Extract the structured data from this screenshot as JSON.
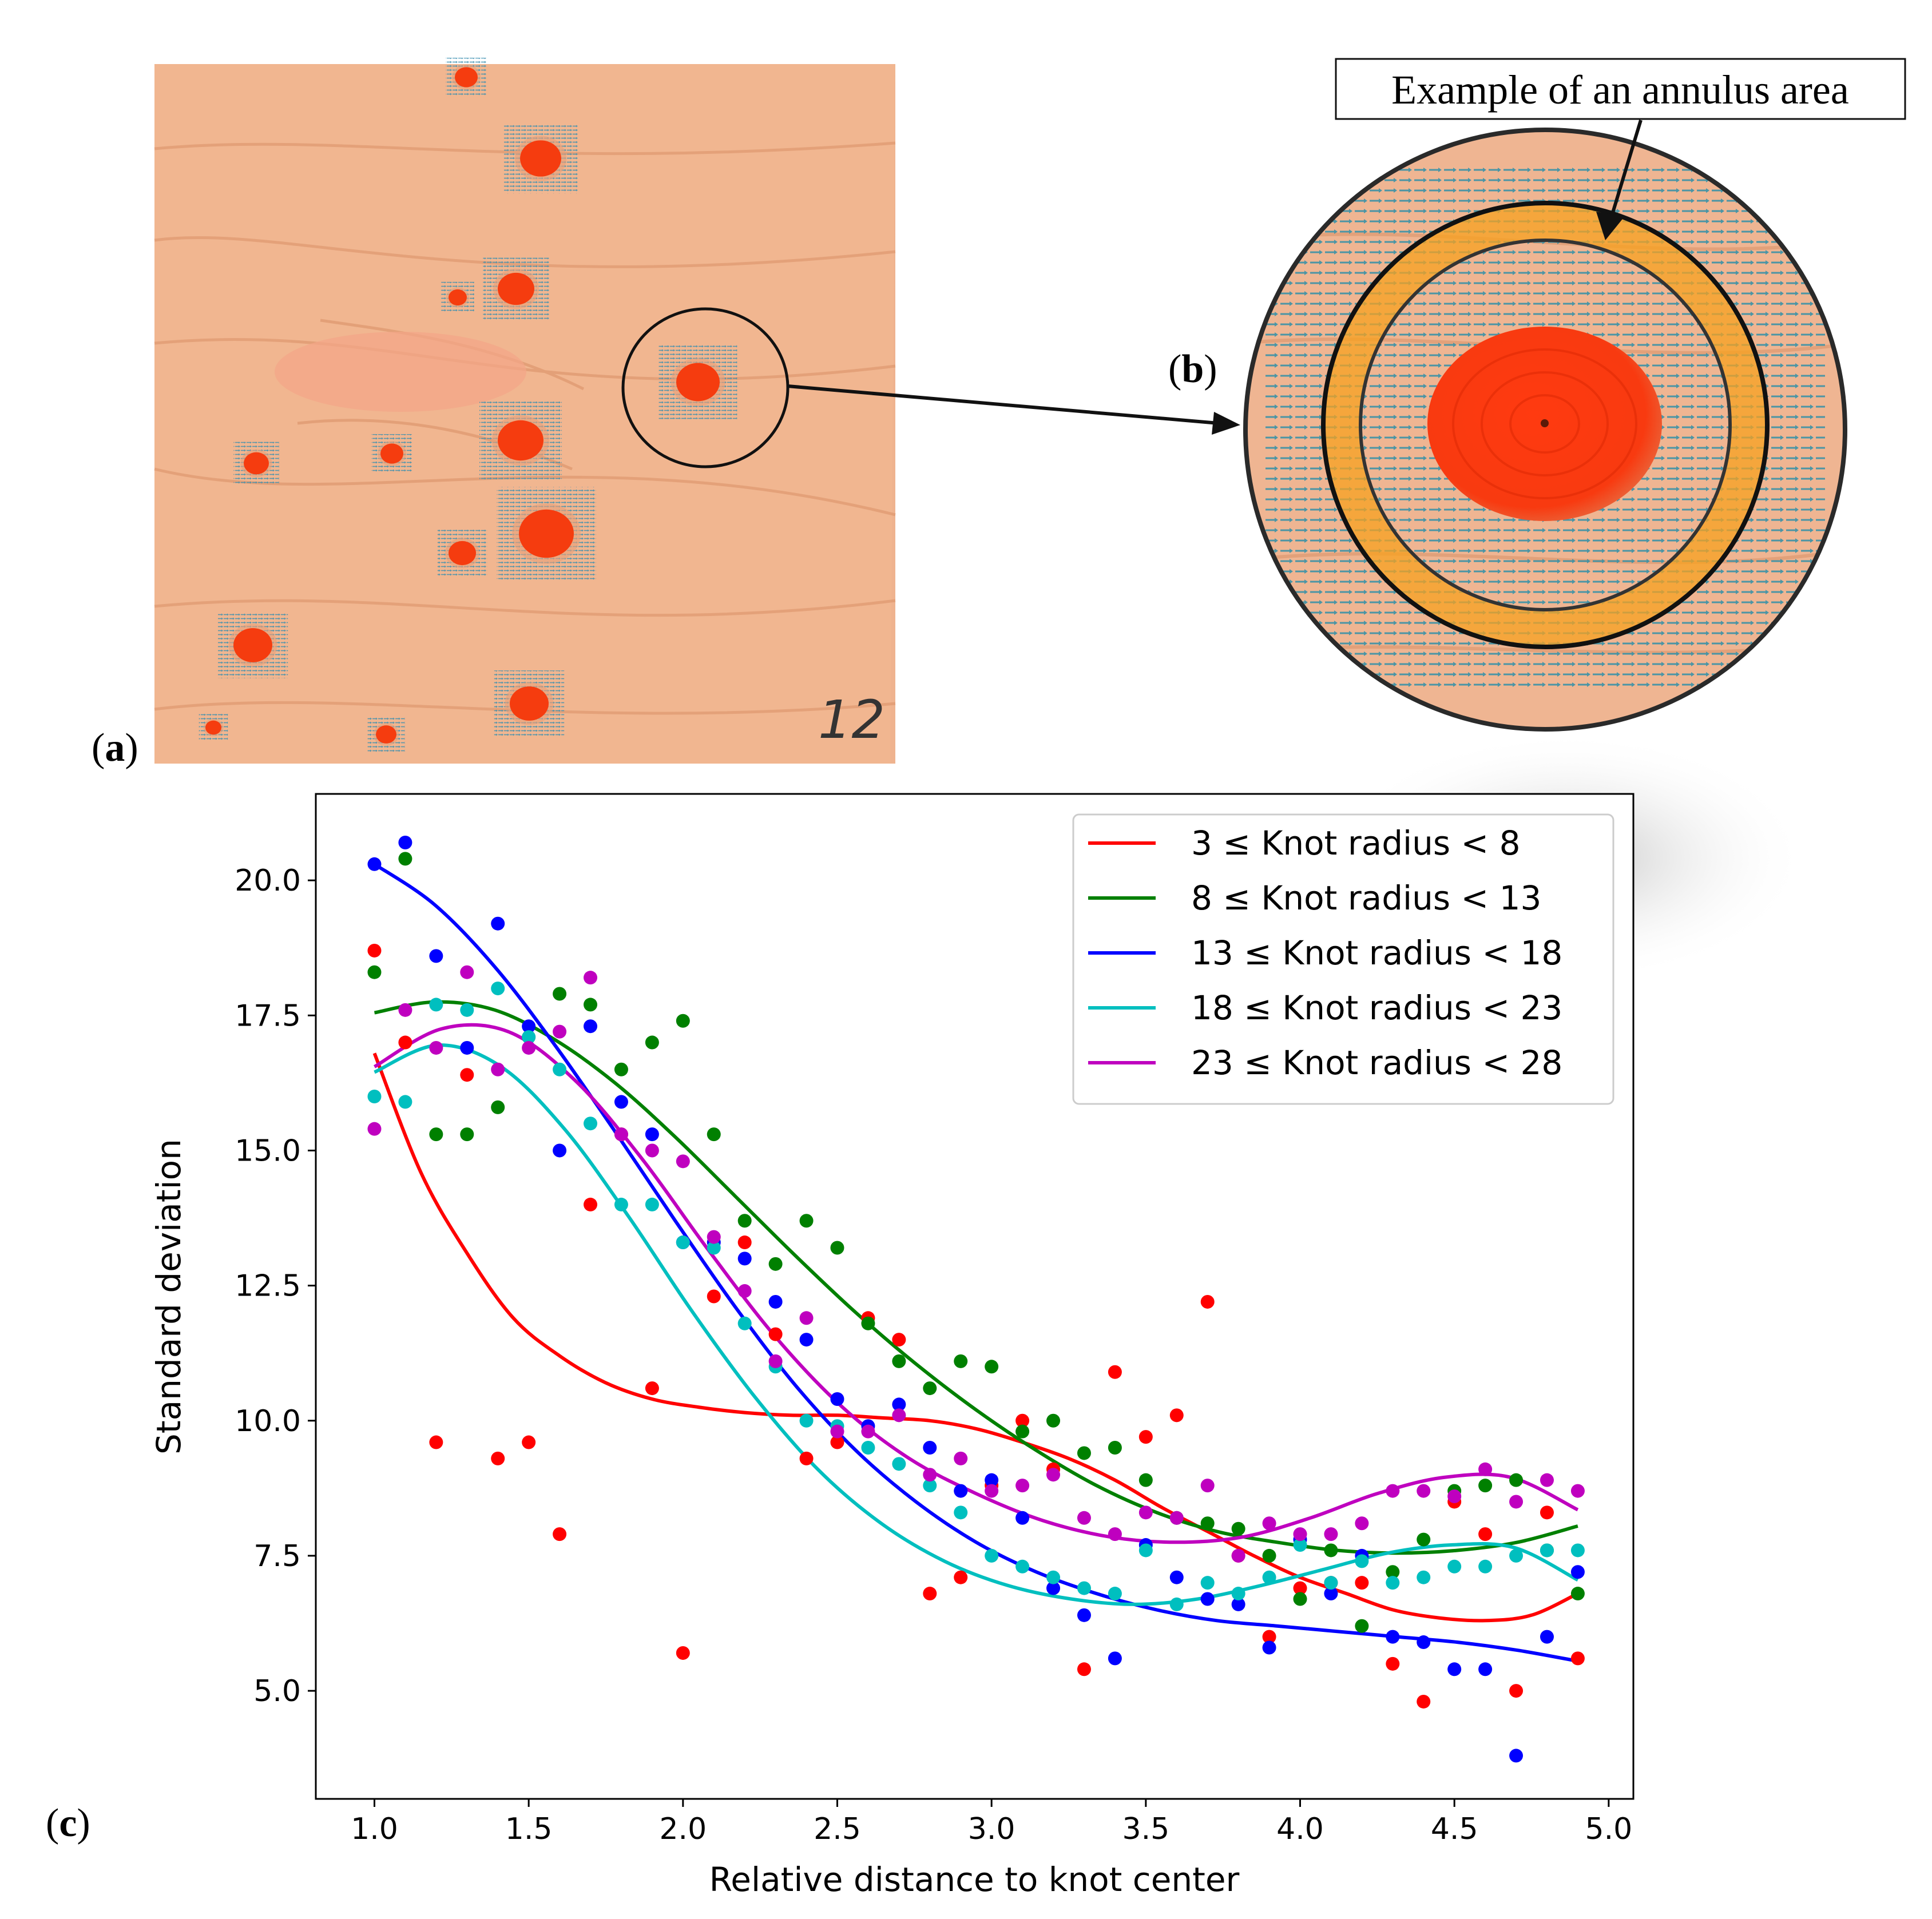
{
  "panel_labels": {
    "a": "a",
    "b": "b",
    "c": "c"
  },
  "photo_a": {
    "handwritten_mark": "12"
  },
  "callout": {
    "text": "Example of an annulus area"
  },
  "chart_data": {
    "type": "scatter",
    "title": "",
    "xlabel": "Relative distance to knot center",
    "ylabel": "Standard deviation",
    "xlim": [
      0.81,
      5.08
    ],
    "ylim": [
      3.0,
      21.6
    ],
    "xticks": [
      "1.0",
      "1.5",
      "2.0",
      "2.5",
      "3.0",
      "3.5",
      "4.0",
      "4.5",
      "5.0"
    ],
    "yticks": [
      "5.0",
      "7.5",
      "10.0",
      "12.5",
      "15.0",
      "17.5",
      "20.0"
    ],
    "grid": false,
    "legend_position": "top-right",
    "x": [
      1.0,
      1.1,
      1.2,
      1.3,
      1.4,
      1.5,
      1.6,
      1.7,
      1.8,
      1.9,
      2.0,
      2.1,
      2.2,
      2.3,
      2.4,
      2.5,
      2.6,
      2.7,
      2.8,
      2.9,
      3.0,
      3.1,
      3.2,
      3.3,
      3.4,
      3.5,
      3.6,
      3.7,
      3.8,
      3.9,
      4.0,
      4.1,
      4.2,
      4.3,
      4.4,
      4.5,
      4.6,
      4.7,
      4.8,
      4.9
    ],
    "series": [
      {
        "name": "3 ≤ Knot radius < 8",
        "color": "#ff0000",
        "points": [
          18.7,
          17.0,
          9.6,
          16.4,
          9.3,
          9.6,
          7.9,
          14.0,
          15.3,
          10.6,
          5.7,
          12.3,
          13.3,
          11.6,
          9.3,
          9.6,
          11.9,
          11.5,
          6.8,
          7.1,
          8.8,
          10.0,
          9.1,
          5.4,
          10.9,
          9.7,
          10.1,
          12.2,
          7.5,
          6.0,
          6.9,
          7.0,
          7.0,
          5.5,
          4.8,
          8.5,
          7.9,
          5.0,
          8.3,
          5.6
        ],
        "curve": [
          16.8,
          14.6,
          13.1,
          11.9,
          11.2,
          10.7,
          10.4,
          10.25,
          10.15,
          10.1,
          10.1,
          10.05,
          10.0,
          9.85,
          9.6,
          9.3,
          8.9,
          8.4,
          7.95,
          7.5,
          7.1,
          6.8,
          6.5,
          6.35,
          6.3,
          6.4,
          6.8
        ]
      },
      {
        "name": "8 ≤ Knot radius < 13",
        "color": "#008000",
        "points": [
          18.3,
          20.4,
          15.3,
          15.3,
          15.8,
          17.1,
          17.9,
          17.7,
          16.5,
          17.0,
          17.4,
          15.3,
          13.7,
          12.9,
          13.7,
          13.2,
          11.8,
          11.1,
          10.6,
          11.1,
          11.0,
          9.8,
          10.0,
          9.4,
          9.5,
          8.9,
          8.2,
          8.1,
          8.0,
          7.5,
          6.7,
          7.6,
          6.2,
          7.2,
          7.8,
          8.7,
          8.8,
          8.9,
          7.6,
          6.8
        ],
        "curve": [
          17.55,
          17.75,
          17.6,
          17.05,
          16.25,
          15.25,
          14.15,
          13.05,
          12.0,
          11.05,
          10.2,
          9.45,
          8.8,
          8.3,
          7.95,
          7.75,
          7.6,
          7.55,
          7.6,
          7.75,
          8.05
        ]
      },
      {
        "name": "13 ≤ Knot radius < 18",
        "color": "#0000ff",
        "points": [
          20.3,
          20.7,
          18.6,
          16.9,
          19.2,
          17.3,
          15.0,
          17.3,
          15.9,
          15.3,
          13.3,
          13.3,
          13.0,
          12.2,
          11.5,
          10.4,
          9.9,
          10.3,
          9.5,
          8.7,
          8.9,
          8.2,
          6.9,
          6.4,
          5.6,
          7.7,
          7.1,
          6.7,
          6.6,
          5.8,
          7.8,
          6.8,
          7.5,
          6.0,
          5.9,
          5.4,
          5.4,
          3.8,
          6.0,
          7.2
        ],
        "curve": [
          20.3,
          19.55,
          18.4,
          16.95,
          15.35,
          13.7,
          12.1,
          10.65,
          9.45,
          8.5,
          7.75,
          7.2,
          6.8,
          6.5,
          6.3,
          6.2,
          6.1,
          6.0,
          5.9,
          5.75,
          5.55
        ]
      },
      {
        "name": "18 ≤ Knot radius < 23",
        "color": "#00bfbf",
        "points": [
          16.0,
          15.9,
          17.7,
          17.6,
          18.0,
          17.1,
          16.5,
          15.5,
          14.0,
          14.0,
          13.3,
          13.2,
          11.8,
          11.0,
          10.0,
          9.9,
          9.5,
          9.2,
          8.8,
          8.3,
          7.5,
          7.3,
          7.1,
          6.9,
          6.8,
          7.6,
          6.6,
          7.0,
          6.8,
          7.1,
          7.7,
          7.0,
          7.4,
          7.0,
          7.1,
          7.3,
          7.3,
          7.5,
          7.6,
          7.6
        ],
        "curve": [
          16.45,
          16.95,
          16.55,
          15.4,
          13.8,
          12.05,
          10.45,
          9.1,
          8.1,
          7.4,
          6.95,
          6.7,
          6.6,
          6.7,
          6.95,
          7.25,
          7.55,
          7.7,
          7.65,
          7.05
        ]
      },
      {
        "name": "23 ≤ Knot radius < 28",
        "color": "#bf00bf",
        "points": [
          15.4,
          17.6,
          16.9,
          18.3,
          16.5,
          16.9,
          17.2,
          18.2,
          15.3,
          15.0,
          14.8,
          13.4,
          12.4,
          11.1,
          11.9,
          9.8,
          9.8,
          10.1,
          9.0,
          9.3,
          8.7,
          8.8,
          9.0,
          8.2,
          7.9,
          8.3,
          8.2,
          8.8,
          7.5,
          8.1,
          7.9,
          7.9,
          8.1,
          8.7,
          8.7,
          8.6,
          9.1,
          8.5,
          8.9,
          8.7
        ],
        "curve": [
          16.55,
          17.25,
          17.2,
          16.3,
          14.85,
          13.15,
          11.55,
          10.25,
          9.3,
          8.65,
          8.15,
          7.85,
          7.75,
          7.85,
          8.2,
          8.65,
          8.95,
          8.95,
          8.35
        ]
      }
    ]
  }
}
